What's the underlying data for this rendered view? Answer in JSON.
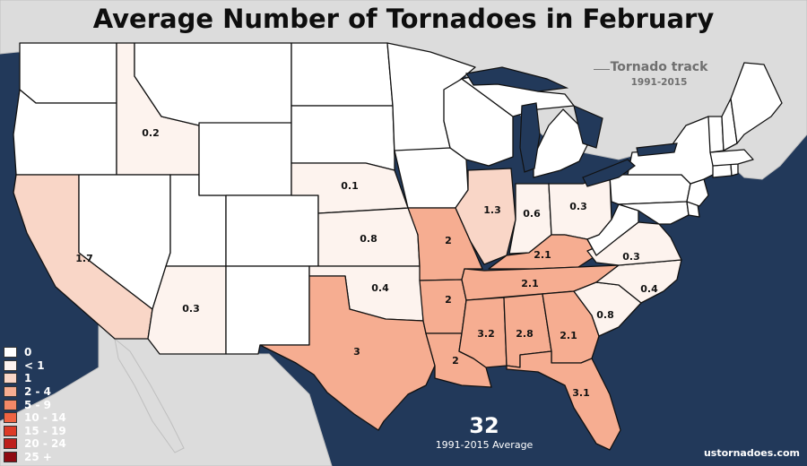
{
  "title": "Average Number of Tornadoes in February",
  "track_legend": {
    "label": "Tornado track",
    "years": "1991-2015"
  },
  "total": {
    "value": "32",
    "subtitle": "1991-2015 Average"
  },
  "source": "ustornadoes.com",
  "colors": {
    "ocean": "#22395a",
    "neighbor": "#dcdcdc",
    "zero": "#ffffff",
    "lt1": "#fdf3ee",
    "one": "#f9d6c7",
    "two_four": "#f6ad91"
  },
  "legend": [
    {
      "label": "0",
      "color": "#ffffff"
    },
    {
      "label": "< 1",
      "color": "#fdf3ee"
    },
    {
      "label": "1",
      "color": "#f9d6c7"
    },
    {
      "label": "2 - 4",
      "color": "#f6ad91"
    },
    {
      "label": "5 - 9",
      "color": "#f28867"
    },
    {
      "label": "10 - 14",
      "color": "#ee6342"
    },
    {
      "label": "15 - 19",
      "color": "#dc3b27"
    },
    {
      "label": "20 - 24",
      "color": "#bd1f1c"
    },
    {
      "label": "25 +",
      "color": "#8e0a12"
    }
  ],
  "state_values": {
    "idaho": "0.2",
    "nebraska": "0.1",
    "kansas": "0.8",
    "missouri": "2",
    "illinois": "1.3",
    "indiana": "0.6",
    "ohio": "0.3",
    "kentucky": "2.1",
    "virginia": "0.3",
    "north_carolina": "0.4",
    "tennessee": "2.1",
    "south_carolina": "0.8",
    "california": "1.7",
    "arizona": "0.3",
    "oklahoma": "0.4",
    "arkansas": "2",
    "texas": "3",
    "louisiana": "2",
    "mississippi": "3.2",
    "alabama": "2.8",
    "georgia": "2.1",
    "florida": "3.1"
  }
}
